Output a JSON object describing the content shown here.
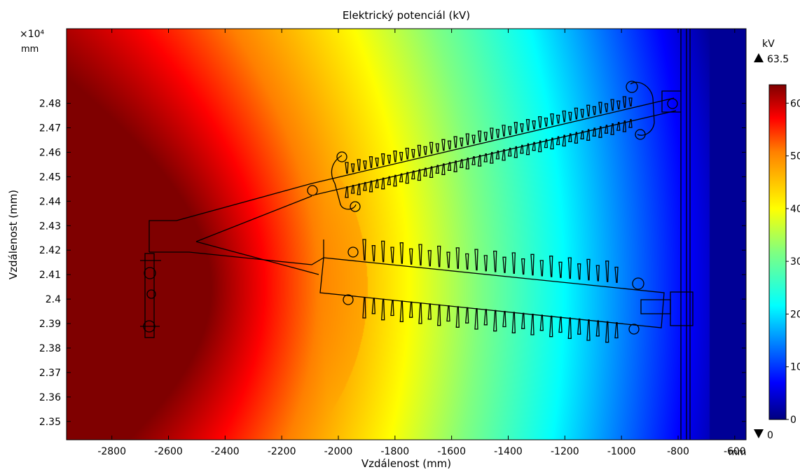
{
  "chart_data": {
    "type": "heatmap",
    "title": "Elektrický potenciál (kV)",
    "xlabel": "Vzdálenost (mm)",
    "ylabel": "Vzdálenost (mm)",
    "x_unit": "mm",
    "y_unit": "mm",
    "y_multiplier": "×10⁴",
    "xlim": [
      -2960,
      -560
    ],
    "ylim": [
      2.3425,
      2.5105
    ],
    "x_ticks": [
      -2800,
      -2600,
      -2400,
      -2200,
      -2000,
      -1800,
      -1600,
      -1400,
      -1200,
      -1000,
      -800,
      -600
    ],
    "y_ticks": [
      2.35,
      2.36,
      2.37,
      2.38,
      2.39,
      2.4,
      2.41,
      2.42,
      2.43,
      2.44,
      2.45,
      2.46,
      2.47,
      2.48
    ],
    "colorbar": {
      "unit": "kV",
      "max_label": "63.5",
      "min_label": "0",
      "max": 63.5,
      "min": 0,
      "ticks": [
        0,
        10,
        20,
        30,
        40,
        50,
        60
      ],
      "colormap": "rainbow (blue-cyan-green-yellow-orange-red-darkred)"
    },
    "field": {
      "high_potential_center": {
        "x": -2640,
        "y": 2.405
      },
      "max_value_kV": 63.5,
      "grounded_region_x_from": -690,
      "min_value_kV": 0
    }
  },
  "colors": {
    "stops": [
      "#00007f",
      "#0000ff",
      "#0080ff",
      "#00ffff",
      "#80ff80",
      "#ffff00",
      "#ff8000",
      "#ff0000",
      "#7f0000"
    ]
  }
}
